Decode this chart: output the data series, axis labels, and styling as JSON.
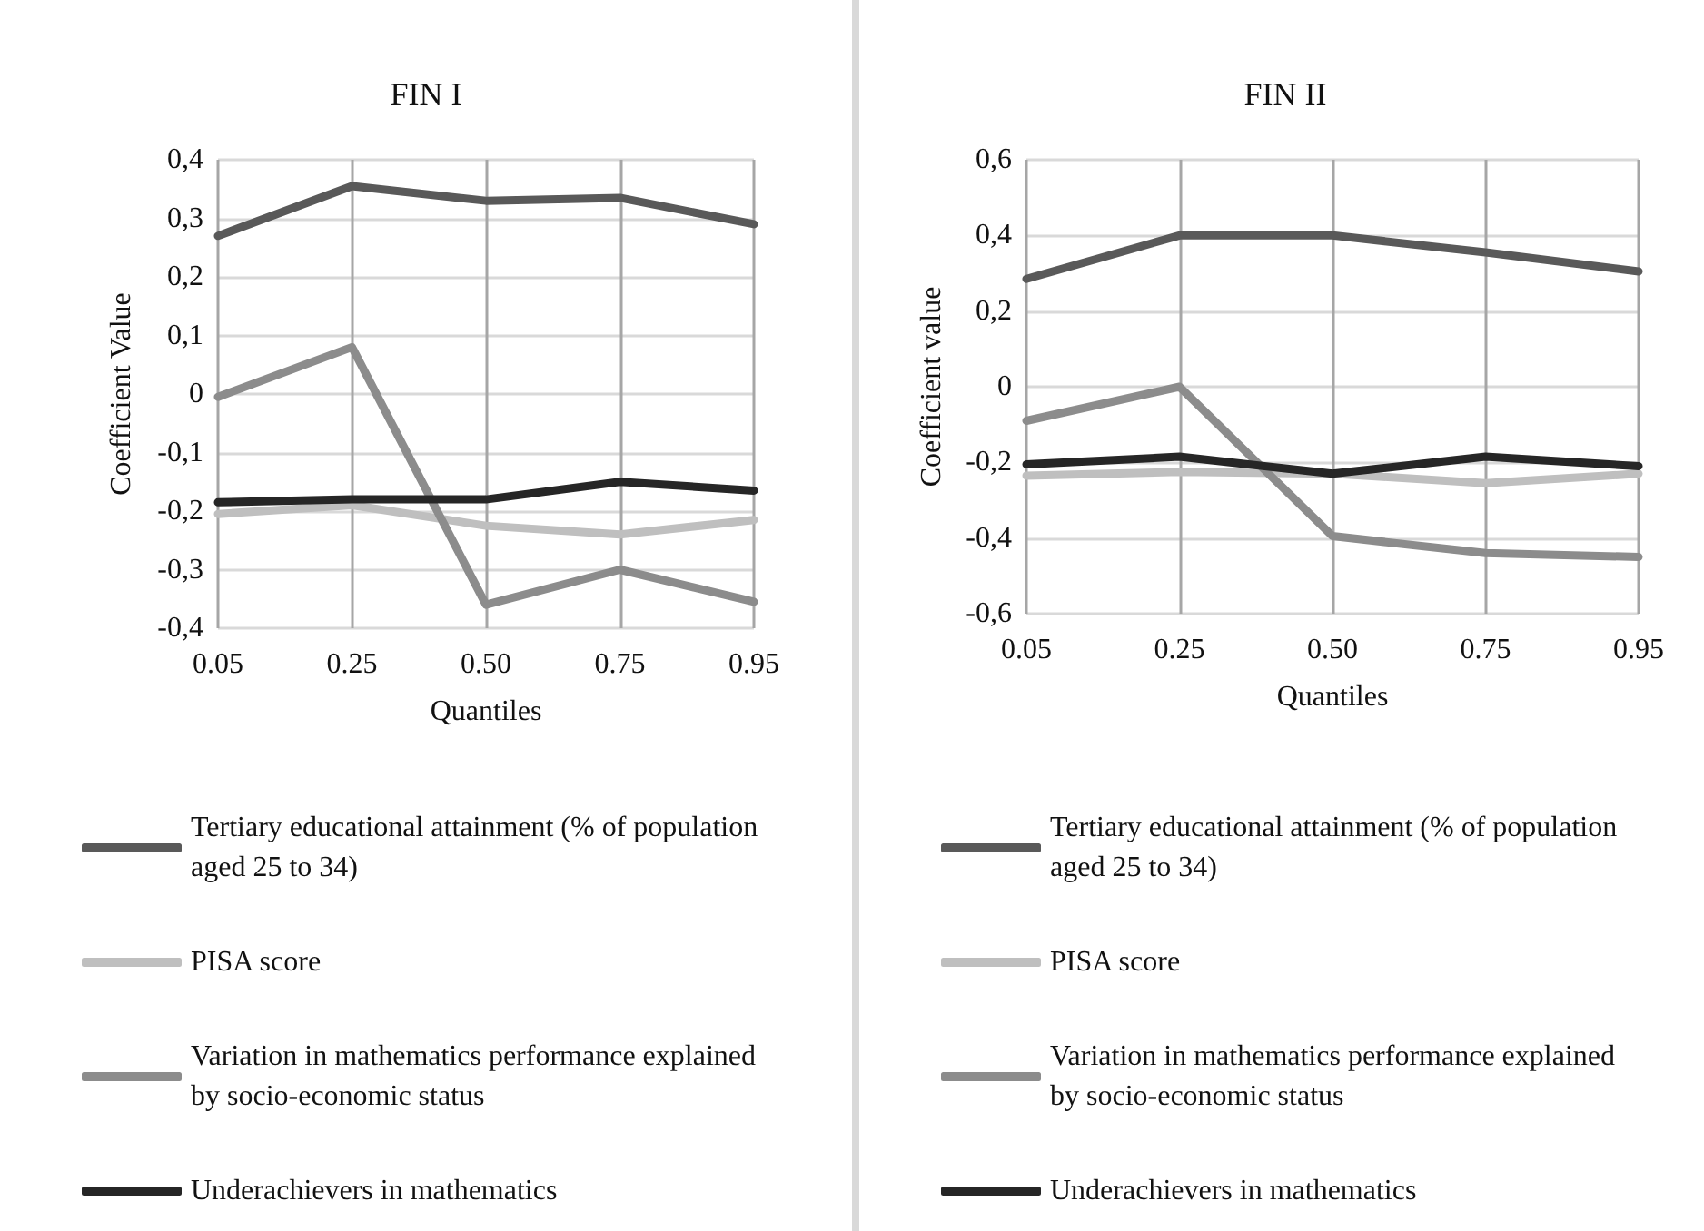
{
  "chart_data": [
    {
      "type": "line",
      "title": "FIN I",
      "xlabel": "Quantiles",
      "ylabel": "Coefficient Value",
      "categories": [
        "0.05",
        "0.25",
        "0.50",
        "0.75",
        "0.95"
      ],
      "series": [
        {
          "name": "Tertiary educational attainment (% of population aged 25 to 34)",
          "color": "#595959",
          "values": [
            0.27,
            0.355,
            0.33,
            0.335,
            0.29
          ]
        },
        {
          "name": "PISA score",
          "color": "#bfbfbf",
          "values": [
            -0.205,
            -0.19,
            -0.225,
            -0.24,
            -0.215
          ]
        },
        {
          "name": "Variation in mathematics performance explained by socio-economic status",
          "color": "#8c8c8c",
          "values": [
            -0.005,
            0.08,
            -0.36,
            -0.3,
            -0.355
          ]
        },
        {
          "name": "Underachievers in mathematics",
          "color": "#262626",
          "values": [
            -0.185,
            -0.18,
            -0.18,
            -0.15,
            -0.165
          ]
        }
      ],
      "ylim": [
        -0.4,
        0.4
      ],
      "yticks": [
        {
          "value": -0.4,
          "label": "-0,4"
        },
        {
          "value": -0.3,
          "label": "-0,3"
        },
        {
          "value": -0.2,
          "label": "-0,2"
        },
        {
          "value": -0.1,
          "label": "-0,1"
        },
        0,
        {
          "value": 0.1,
          "label": "0,1"
        },
        {
          "value": 0.2,
          "label": "0,2"
        },
        {
          "value": 0.3,
          "label": "0,3"
        },
        {
          "value": 0.4,
          "label": "0,4"
        }
      ],
      "grid": true,
      "legend": "bottom",
      "marker": "none",
      "line_style": "solid"
    },
    {
      "type": "line",
      "title": "FIN II",
      "xlabel": "Quantiles",
      "ylabel": "Coefficient value",
      "categories": [
        "0.05",
        "0.25",
        "0.50",
        "0.75",
        "0.95"
      ],
      "series": [
        {
          "name": "Tertiary educational attainment (% of population aged 25 to 34)",
          "color": "#595959",
          "values": [
            0.285,
            0.4,
            0.4,
            0.355,
            0.305
          ]
        },
        {
          "name": "PISA score",
          "color": "#bfbfbf",
          "values": [
            -0.235,
            -0.225,
            -0.23,
            -0.255,
            -0.23
          ]
        },
        {
          "name": "Variation in mathematics performance explained by socio-economic status",
          "color": "#8c8c8c",
          "values": [
            -0.09,
            0,
            -0.395,
            -0.44,
            -0.45
          ]
        },
        {
          "name": "Underachievers in mathematics",
          "color": "#262626",
          "values": [
            -0.205,
            -0.185,
            -0.23,
            -0.185,
            -0.21
          ]
        }
      ],
      "ylim": [
        -0.6,
        0.6
      ],
      "yticks": [
        {
          "value": -0.6,
          "label": "-0,6"
        },
        {
          "value": -0.4,
          "label": "-0,4"
        },
        {
          "value": -0.2,
          "label": "-0,2"
        },
        0,
        {
          "value": 0.2,
          "label": "0,2"
        },
        {
          "value": 0.4,
          "label": "0,4"
        },
        {
          "value": 0.6,
          "label": "0,6"
        }
      ],
      "grid": true,
      "legend": "bottom",
      "marker": "none",
      "line_style": "solid"
    }
  ]
}
